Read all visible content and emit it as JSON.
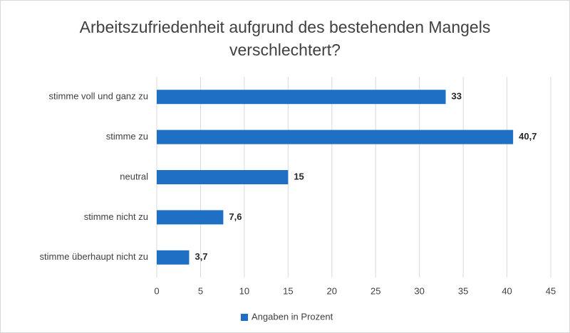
{
  "chart_data": {
    "type": "bar",
    "orientation": "horizontal",
    "title": "Arbeitszufriedenheit aufgrund des bestehenden Mangels verschlechtert?",
    "categories": [
      "stimme voll und ganz zu",
      "stimme zu",
      "neutral",
      "stimme nicht zu",
      "stimme überhaupt nicht zu"
    ],
    "series": [
      {
        "name": "Angaben in Prozent",
        "color": "#1f6fc5",
        "values": [
          33,
          40.7,
          15,
          7.6,
          3.7
        ],
        "value_labels": [
          "33",
          "40,7",
          "15",
          "7,6",
          "3,7"
        ]
      }
    ],
    "xlim": [
      0,
      45
    ],
    "xticks": [
      0,
      5,
      10,
      15,
      20,
      25,
      30,
      35,
      40,
      45
    ],
    "grid": true,
    "legend": "bottom"
  }
}
